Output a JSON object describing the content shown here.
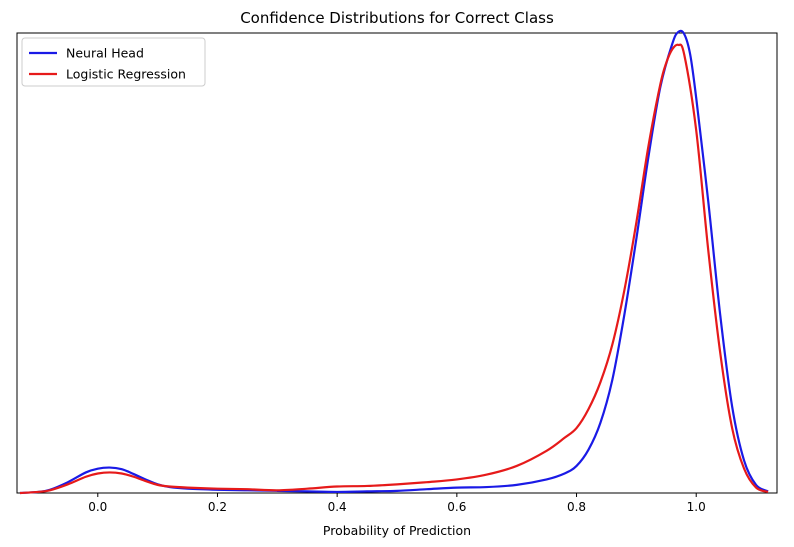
{
  "chart_data": {
    "type": "line",
    "title": "Confidence Distributions for Correct Class",
    "xlabel": "Probability of Prediction",
    "ylabel": "",
    "xlim": [
      -0.135,
      1.135
    ],
    "ylim": [
      0,
      8.5
    ],
    "xticks": [
      "0.0",
      "0.2",
      "0.4",
      "0.6",
      "0.8",
      "1.0"
    ],
    "yticks_visible": false,
    "grid": false,
    "legend_position": "top-left",
    "series": [
      {
        "name": "Neural Head",
        "color": "#1a1ae6",
        "x": [
          -0.13,
          -0.1,
          -0.08,
          -0.05,
          -0.02,
          0.0,
          0.02,
          0.04,
          0.06,
          0.08,
          0.1,
          0.12,
          0.15,
          0.2,
          0.25,
          0.3,
          0.35,
          0.4,
          0.45,
          0.5,
          0.55,
          0.6,
          0.65,
          0.7,
          0.75,
          0.78,
          0.8,
          0.82,
          0.84,
          0.86,
          0.88,
          0.9,
          0.92,
          0.94,
          0.96,
          0.97,
          0.98,
          0.99,
          1.0,
          1.02,
          1.04,
          1.06,
          1.08,
          1.1,
          1.12
        ],
        "y": [
          0.0,
          0.02,
          0.06,
          0.2,
          0.38,
          0.45,
          0.47,
          0.44,
          0.35,
          0.25,
          0.16,
          0.11,
          0.08,
          0.06,
          0.05,
          0.04,
          0.03,
          0.02,
          0.03,
          0.04,
          0.07,
          0.1,
          0.11,
          0.15,
          0.25,
          0.36,
          0.5,
          0.8,
          1.3,
          2.1,
          3.3,
          4.7,
          6.2,
          7.5,
          8.3,
          8.52,
          8.48,
          8.1,
          7.3,
          5.4,
          3.3,
          1.6,
          0.6,
          0.15,
          0.03
        ]
      },
      {
        "name": "Logistic Regression",
        "color": "#e61a1a",
        "x": [
          -0.13,
          -0.1,
          -0.08,
          -0.05,
          -0.02,
          0.0,
          0.02,
          0.04,
          0.06,
          0.08,
          0.1,
          0.12,
          0.15,
          0.2,
          0.25,
          0.3,
          0.35,
          0.4,
          0.45,
          0.5,
          0.55,
          0.6,
          0.65,
          0.7,
          0.75,
          0.78,
          0.8,
          0.82,
          0.84,
          0.86,
          0.88,
          0.9,
          0.92,
          0.94,
          0.95,
          0.96,
          0.97,
          0.98,
          1.0,
          1.02,
          1.04,
          1.06,
          1.08,
          1.1,
          1.12
        ],
        "y": [
          0.0,
          0.02,
          0.05,
          0.16,
          0.3,
          0.36,
          0.38,
          0.36,
          0.3,
          0.22,
          0.15,
          0.12,
          0.1,
          0.08,
          0.07,
          0.05,
          0.08,
          0.12,
          0.13,
          0.16,
          0.2,
          0.25,
          0.34,
          0.5,
          0.78,
          1.02,
          1.2,
          1.55,
          2.05,
          2.75,
          3.75,
          5.0,
          6.4,
          7.55,
          7.95,
          8.2,
          8.28,
          8.1,
          6.7,
          4.5,
          2.6,
          1.2,
          0.45,
          0.1,
          0.02
        ]
      }
    ]
  }
}
